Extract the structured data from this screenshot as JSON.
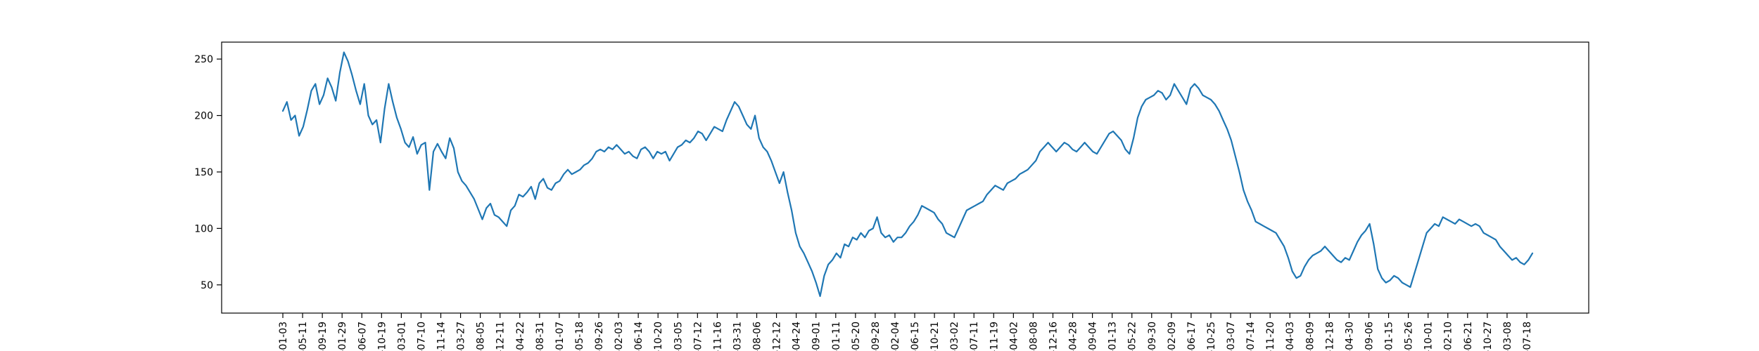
{
  "colors": {
    "line": "#1f77b4",
    "axis": "#000000",
    "background": "#ffffff"
  },
  "chart_data": {
    "type": "line",
    "title": "",
    "xlabel": "",
    "ylabel": "",
    "grid": false,
    "ylim": [
      25,
      265
    ],
    "y_ticks": [
      50,
      100,
      150,
      200,
      250
    ],
    "x_tick_labels": [
      "-01-03",
      "-05-11",
      "-09-19",
      "-01-29",
      "-06-07",
      "-10-19",
      "-03-01",
      "-07-10",
      "-11-14",
      "-03-27",
      "-08-05",
      "-12-11",
      "-04-22",
      "-08-31",
      "-01-07",
      "-05-18",
      "-09-26",
      "-02-03",
      "-06-14",
      "-10-20",
      "-03-05",
      "-07-12",
      "-11-16",
      "-03-31",
      "-08-06",
      "-12-12",
      "-04-24",
      "-09-01",
      "-01-11",
      "-05-20",
      "-09-28",
      "-02-04",
      "-06-15",
      "-10-21",
      "-03-02",
      "-07-11",
      "-11-19",
      "-04-02",
      "-08-08",
      "-12-16",
      "-04-28",
      "-09-04",
      "-01-13",
      "-05-22",
      "-09-30",
      "-02-09",
      "-06-17",
      "-10-25",
      "-03-07",
      "-07-14",
      "-11-20",
      "-04-03",
      "-08-09",
      "-12-18",
      "-04-30",
      "-09-06",
      "-01-15",
      "-05-26",
      "-10-01",
      "-02-10",
      "-06-21",
      "-10-27",
      "-03-08",
      "-07-18"
    ],
    "series": [
      {
        "values": [
          204,
          212,
          196,
          200,
          182,
          190,
          205,
          222,
          228,
          210,
          218,
          233,
          225,
          213,
          238,
          256,
          248,
          236,
          222,
          210,
          228,
          200,
          192,
          196,
          176,
          206,
          228,
          212,
          198,
          188,
          176,
          172,
          181,
          166,
          174,
          176,
          134,
          168,
          175,
          168,
          162,
          180,
          171,
          150,
          142,
          138,
          132,
          126,
          117,
          108,
          118,
          122,
          112,
          110,
          106,
          102,
          116,
          120,
          130,
          128,
          132,
          137,
          126,
          140,
          144,
          136,
          134,
          140,
          142,
          148,
          152,
          148,
          150,
          152,
          156,
          158,
          162,
          168,
          170,
          168,
          172,
          170,
          174,
          170,
          166,
          168,
          164,
          162,
          170,
          172,
          168,
          162,
          168,
          166,
          168,
          160,
          166,
          172,
          174,
          178,
          176,
          180,
          186,
          184,
          178,
          184,
          190,
          188,
          186,
          196,
          204,
          212,
          208,
          200,
          192,
          188,
          200,
          180,
          172,
          168,
          160,
          150,
          140,
          150,
          132,
          116,
          96,
          84,
          78,
          70,
          62,
          52,
          40,
          58,
          68,
          72,
          78,
          74,
          86,
          84,
          92,
          90,
          96,
          92,
          98,
          100,
          110,
          96,
          92,
          94,
          88,
          92,
          92,
          96,
          102,
          106,
          112,
          120,
          118,
          116,
          114,
          108,
          104,
          96,
          94,
          92,
          100,
          108,
          116,
          118,
          120,
          122,
          124,
          130,
          134,
          138,
          136,
          134,
          140,
          142,
          144,
          148,
          150,
          152,
          156,
          160,
          168,
          172,
          176,
          172,
          168,
          172,
          176,
          174,
          170,
          168,
          172,
          176,
          172,
          168,
          166,
          172,
          178,
          184,
          186,
          182,
          178,
          170,
          166,
          180,
          198,
          208,
          214,
          216,
          218,
          222,
          220,
          214,
          218,
          228,
          222,
          216,
          210,
          224,
          228,
          224,
          218,
          216,
          214,
          210,
          204,
          196,
          188,
          178,
          164,
          150,
          134,
          124,
          116,
          106,
          104,
          102,
          100,
          98,
          96,
          90,
          84,
          74,
          62,
          56,
          58,
          66,
          72,
          76,
          78,
          80,
          84,
          80,
          76,
          72,
          70,
          74,
          72,
          80,
          88,
          94,
          98,
          104,
          86,
          64,
          56,
          52,
          54,
          58,
          56,
          52,
          50,
          48,
          60,
          72,
          84,
          96,
          100,
          104,
          102,
          110,
          108,
          106,
          104,
          108,
          106,
          104,
          102,
          104,
          102,
          96,
          94,
          92,
          90,
          84,
          80,
          76,
          72,
          74,
          70,
          68,
          72,
          78
        ]
      }
    ]
  }
}
